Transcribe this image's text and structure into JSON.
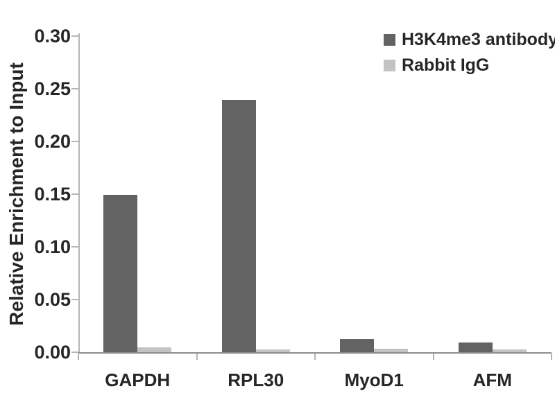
{
  "chart_data": {
    "type": "bar",
    "title": "",
    "xlabel": "",
    "ylabel": "Relative Enrichment to Input",
    "categories": [
      "GAPDH",
      "RPL30",
      "MyoD1",
      "AFM"
    ],
    "series": [
      {
        "name": "H3K4me3 antibody",
        "color": "#636363",
        "values": [
          0.15,
          0.24,
          0.013,
          0.01
        ]
      },
      {
        "name": "Rabbit IgG",
        "color": "#c3c3c3",
        "values": [
          0.005,
          0.003,
          0.004,
          0.003
        ]
      }
    ],
    "ylim": [
      0,
      0.3
    ],
    "ytick_step": 0.05,
    "ytick_labels": [
      "0.00",
      "0.05",
      "0.10",
      "0.15",
      "0.20",
      "0.25",
      "0.30"
    ],
    "grid": false,
    "legend_position": "top-right",
    "colors": {
      "text": "#262626",
      "x_axis_line": "#8c8c8c",
      "y_axis_line": "#b5b5b5",
      "tick_mark": "#b5b5b5"
    }
  }
}
